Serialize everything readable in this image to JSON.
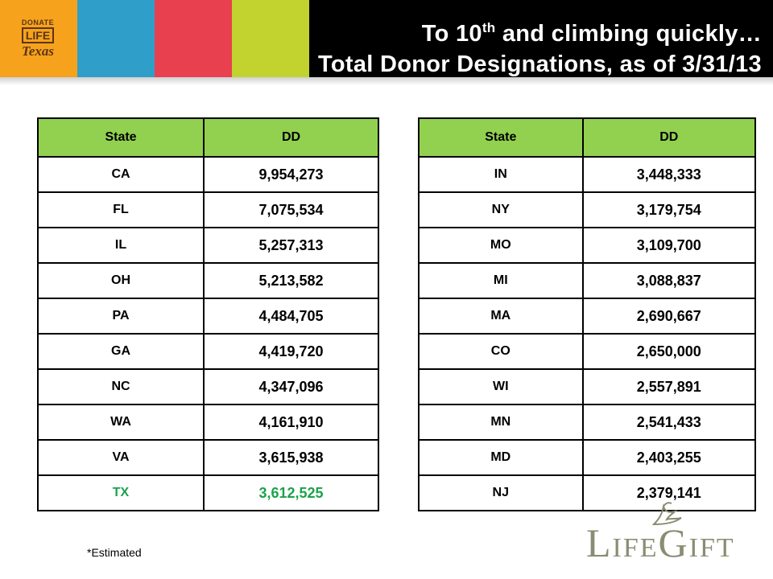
{
  "logo": {
    "line1": "DONATE",
    "line2": "LIFE",
    "line3": "Texas"
  },
  "title": {
    "line1_pre": "To 10",
    "line1_sup": "th",
    "line1_post": " and climbing quickly…",
    "line2": "Total Donor Designations, as of 3/31/13"
  },
  "tables": {
    "header_state": "State",
    "header_dd": "DD",
    "left": [
      {
        "state": "CA",
        "dd": "9,954,273"
      },
      {
        "state": "FL",
        "dd": "7,075,534"
      },
      {
        "state": "IL",
        "dd": "5,257,313"
      },
      {
        "state": "OH",
        "dd": "5,213,582"
      },
      {
        "state": "PA",
        "dd": "4,484,705"
      },
      {
        "state": "GA",
        "dd": "4,419,720"
      },
      {
        "state": "NC",
        "dd": "4,347,096"
      },
      {
        "state": "WA",
        "dd": "4,161,910"
      },
      {
        "state": "VA",
        "dd": "3,615,938"
      },
      {
        "state": "TX",
        "dd": "3,612,525"
      }
    ],
    "right": [
      {
        "state": "IN",
        "dd": "3,448,333"
      },
      {
        "state": "NY",
        "dd": "3,179,754"
      },
      {
        "state": "MO",
        "dd": "3,109,700"
      },
      {
        "state": "MI",
        "dd": "3,088,837"
      },
      {
        "state": "MA",
        "dd": "2,690,667"
      },
      {
        "state": "CO",
        "dd": "2,650,000"
      },
      {
        "state": "WI",
        "dd": "2,557,891"
      },
      {
        "state": "MN",
        "dd": "2,541,433"
      },
      {
        "state": "MD",
        "dd": "2,403,255"
      },
      {
        "state": "NJ",
        "dd": "2,379,141"
      }
    ],
    "highlight_state": "TX",
    "highlight_color": "#1aa34a",
    "header_color": "#92d050"
  },
  "footnote": "*Estimated",
  "brand": {
    "part1_big": "L",
    "part1_small": "IFE",
    "part2_big": "G",
    "part2_small": "IFT"
  }
}
